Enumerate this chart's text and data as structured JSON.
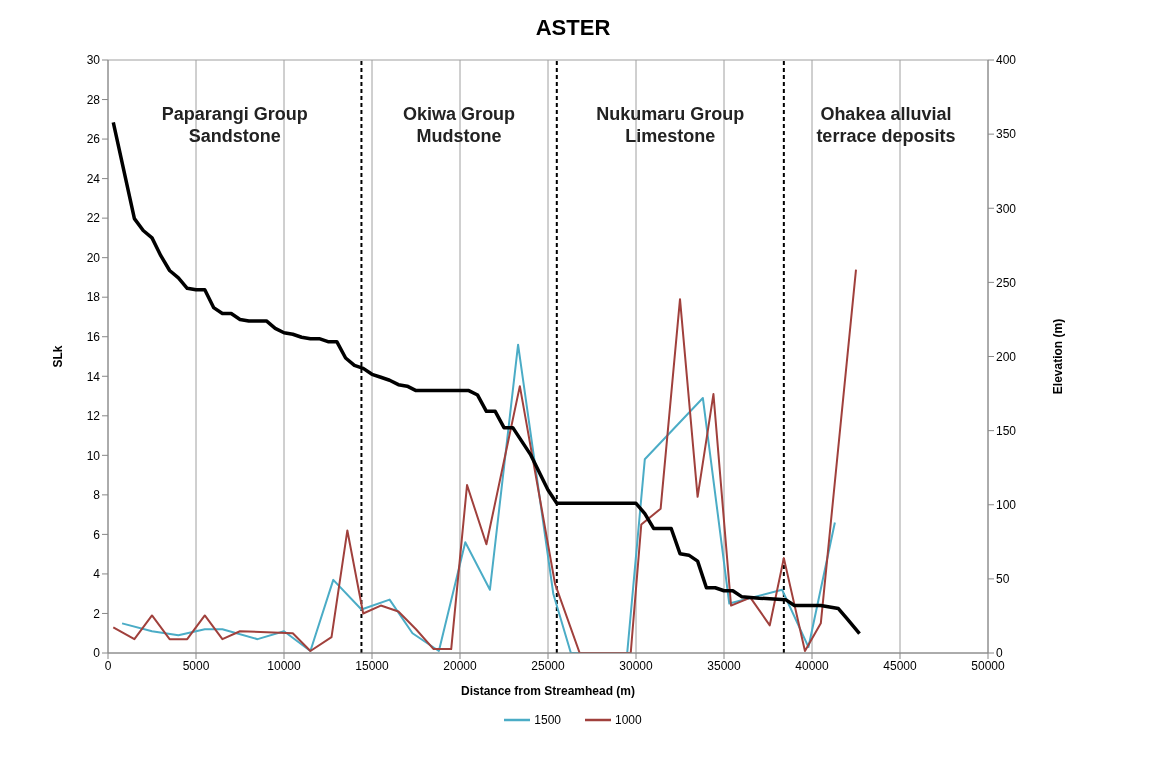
{
  "chart_data": {
    "type": "line",
    "title": "ASTER",
    "xlabel": "Distance from Streamhead (m)",
    "ylabel": "SLk",
    "y2label": "Elevation (m)",
    "xlim": [
      0,
      50000
    ],
    "xticks": [
      0,
      5000,
      10000,
      15000,
      20000,
      25000,
      30000,
      35000,
      40000,
      45000,
      50000
    ],
    "ylim": [
      0,
      30
    ],
    "yticks": [
      0,
      2,
      4,
      6,
      8,
      10,
      12,
      14,
      16,
      18,
      20,
      22,
      24,
      26,
      28,
      30
    ],
    "y2lim": [
      0,
      400
    ],
    "y2ticks": [
      0,
      50,
      100,
      150,
      200,
      250,
      300,
      350,
      400
    ],
    "grid": true,
    "legend": "bottom",
    "marker": "none",
    "line_style": "solid",
    "series": [
      {
        "name": "1500",
        "color": "#4bacc6",
        "x": [
          800,
          2500,
          4000,
          5500,
          6500,
          8500,
          10000,
          11500,
          12800,
          14400,
          16000,
          17300,
          18800,
          20300,
          21700,
          23300,
          25300,
          26300,
          29500,
          30500,
          33800,
          35300,
          38300,
          39800,
          41300
        ],
        "values": [
          1.5,
          1.1,
          0.9,
          1.2,
          1.2,
          0.7,
          1.1,
          0.1,
          3.7,
          2.2,
          2.7,
          1.0,
          0.1,
          5.6,
          3.2,
          15.6,
          3.0,
          0,
          0,
          9.8,
          12.9,
          2.5,
          3.2,
          0.3,
          6.6
        ]
      },
      {
        "name": "1000",
        "color": "#a0403c",
        "x": [
          300,
          1500,
          2500,
          3500,
          4500,
          5500,
          6500,
          7500,
          10500,
          11500,
          12700,
          13600,
          14500,
          15500,
          16500,
          17500,
          18500,
          19500,
          20400,
          21500,
          23400,
          25400,
          26800,
          29700,
          30300,
          31400,
          32500,
          33500,
          34400,
          35400,
          36500,
          37600,
          38400,
          39600,
          40500,
          42500
        ],
        "values": [
          1.3,
          0.7,
          1.9,
          0.7,
          0.7,
          1.9,
          0.7,
          1.1,
          1.0,
          0.1,
          0.8,
          6.2,
          2.0,
          2.4,
          2.1,
          1.2,
          0.2,
          0.2,
          8.5,
          5.5,
          13.5,
          3.5,
          0,
          0,
          6.5,
          7.3,
          17.9,
          7.9,
          13.1,
          2.4,
          2.8,
          1.4,
          4.8,
          0.1,
          1.5,
          19.4
        ]
      },
      {
        "color": "#000000",
        "axis": "y2",
        "x": [
          300,
          1500,
          2000,
          2500,
          3000,
          3500,
          4000,
          4500,
          5000,
          5500,
          6000,
          6500,
          7000,
          7500,
          8000,
          9000,
          9500,
          10000,
          10500,
          11000,
          11500,
          12000,
          12500,
          13000,
          13500,
          14000,
          14500,
          15000,
          15500,
          16000,
          16500,
          17000,
          17500,
          18000,
          20500,
          21000,
          21500,
          22000,
          22500,
          23000,
          24000,
          25000,
          25500,
          29500,
          30000,
          30500,
          31000,
          32000,
          32500,
          33000,
          33500,
          34000,
          34500,
          35000,
          35500,
          36000,
          37000,
          38500,
          39000,
          40500,
          41000,
          41500,
          42000,
          42700
        ],
        "values": [
          358,
          293,
          285,
          280,
          268,
          258,
          253,
          246,
          245,
          245,
          233,
          229,
          229,
          225,
          224,
          224,
          219,
          216,
          215,
          213,
          212,
          212,
          210,
          210,
          199,
          194,
          192,
          188,
          186,
          184,
          181,
          180,
          177,
          177,
          177,
          174,
          163,
          163,
          152,
          152,
          134,
          110,
          101,
          101,
          101,
          94,
          84,
          84,
          67,
          66,
          62,
          44,
          44,
          42,
          42,
          38,
          37,
          36,
          32,
          32,
          31,
          30,
          23,
          13
        ]
      }
    ],
    "ref_lines": [
      {
        "axis": "x",
        "value": 14400,
        "color": "#000000",
        "line_style": "dashed"
      },
      {
        "axis": "x",
        "value": 25500,
        "color": "#000000",
        "line_style": "dashed"
      },
      {
        "axis": "x",
        "value": 38400,
        "color": "#000000",
        "line_style": "dashed"
      }
    ],
    "annotations": [
      "Paparangi Group\nSandstone",
      "Okiwa Group\nMudstone",
      "Nukumaru Group\nLimestone",
      "Ohakea alluvial\nterrace deposits"
    ]
  }
}
